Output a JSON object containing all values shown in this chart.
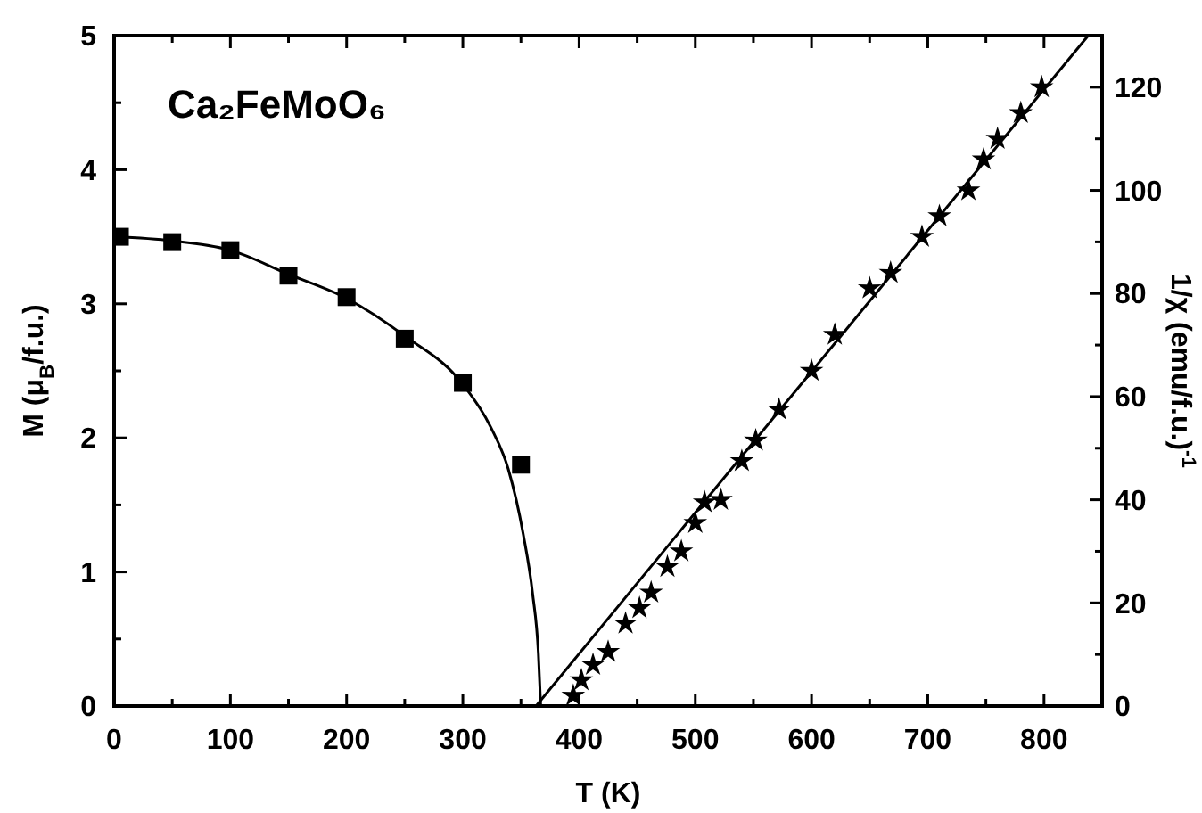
{
  "chart_data": {
    "type": "scatter",
    "title": "Ca₂FeMoO₆",
    "xlabel": "T (K)",
    "ylabel": "M (μ$_{B}$/f.u.)",
    "y2label": "1/χ (emu/f.u.)$^{-1}$",
    "xlim": [
      0,
      850
    ],
    "xticks": [
      0,
      {
        "value": 50,
        "label": null
      },
      100,
      {
        "value": 150,
        "label": null
      },
      200,
      {
        "value": 250,
        "label": null
      },
      300,
      {
        "value": 350,
        "label": null
      },
      400,
      {
        "value": 450,
        "label": null
      },
      500,
      {
        "value": 550,
        "label": null
      },
      600,
      {
        "value": 650,
        "label": null
      },
      700,
      {
        "value": 750,
        "label": null
      },
      800
    ],
    "ylim": [
      0,
      5
    ],
    "yticks": [
      0,
      {
        "value": 0.5,
        "label": null
      },
      1,
      {
        "value": 1.5,
        "label": null
      },
      2,
      {
        "value": 2.5,
        "label": null
      },
      3,
      {
        "value": 3.5,
        "label": null
      },
      4,
      {
        "value": 4.5,
        "label": null
      },
      5
    ],
    "y2lim": [
      0,
      130
    ],
    "y2ticks": [
      0,
      {
        "value": 10,
        "label": null
      },
      20,
      {
        "value": 30,
        "label": null
      },
      40,
      {
        "value": 50,
        "label": null
      },
      60,
      {
        "value": 70,
        "label": null
      },
      80,
      {
        "value": 90,
        "label": null
      },
      100,
      {
        "value": 110,
        "label": null
      },
      120
    ],
    "series": [
      {
        "type": "line",
        "color": "#000000",
        "marker": "none",
        "x": [
          0,
          50,
          100,
          150,
          200,
          250,
          300,
          324,
          339,
          352,
          360,
          365,
          367
        ],
        "values": [
          3.5,
          3.47,
          3.4,
          3.22,
          3.04,
          2.76,
          2.4,
          2.08,
          1.77,
          1.28,
          0.84,
          0.39,
          0
        ]
      },
      {
        "color": "#000000",
        "marker": "square",
        "x": [
          5,
          50,
          100,
          150,
          200,
          250,
          300,
          350
        ],
        "values": [
          3.5,
          3.46,
          3.4,
          3.21,
          3.05,
          2.74,
          2.41,
          1.8
        ]
      },
      {
        "type": "line",
        "axis": "y2",
        "color": "#000000",
        "marker": "none",
        "x": [
          363,
          838
        ],
        "values": [
          0,
          130
        ]
      },
      {
        "axis": "y2",
        "color": "#000000",
        "marker": "star",
        "x": [
          395,
          402,
          412,
          425,
          440,
          452,
          462,
          476,
          488,
          500,
          508,
          522,
          540,
          552,
          572,
          600,
          620,
          650,
          668,
          695,
          710,
          735,
          748,
          760,
          780,
          798
        ],
        "values": [
          2,
          5,
          8,
          10.5,
          16,
          19,
          22,
          27,
          30,
          35.5,
          39.5,
          40,
          47.5,
          51.5,
          57.5,
          65,
          72,
          81,
          84,
          91,
          95,
          100,
          106,
          110,
          115,
          120
        ]
      }
    ]
  }
}
